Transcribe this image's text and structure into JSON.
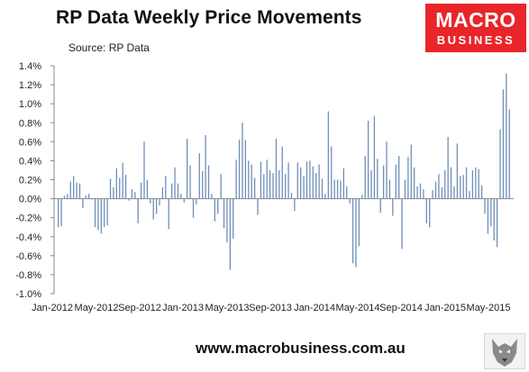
{
  "header": {
    "title": "RP Data Weekly Price Movements",
    "source": "Source: RP Data"
  },
  "logo": {
    "line1": "MACRO",
    "line2": "BUSINESS"
  },
  "footer": {
    "url": "www.macrobusiness.com.au"
  },
  "colors": {
    "bar": "#6f8fb8",
    "brand": "#e8262a"
  },
  "chart_data": {
    "type": "bar",
    "title": "RP Data Weekly Price Movements",
    "xlabel": "",
    "ylabel": "",
    "ylim": [
      -1.0,
      1.4
    ],
    "y_ticks": [
      "1.4%",
      "1.2%",
      "1.0%",
      "0.8%",
      "0.6%",
      "0.4%",
      "0.2%",
      "0.0%",
      "-0.2%",
      "-0.4%",
      "-0.6%",
      "-0.8%",
      "-1.0%"
    ],
    "x_ticks": [
      "Jan-2012",
      "May-2012",
      "Sep-2012",
      "Jan-2013",
      "May-2013",
      "Sep-2013",
      "Jan-2014",
      "May-2014",
      "Sep-2014",
      "Jan-2015",
      "May-2015"
    ],
    "grid": false,
    "legend": "none",
    "series": [
      {
        "values": [
          -0.3,
          -0.29,
          0.03,
          0.05,
          0.18,
          0.24,
          0.17,
          0.16,
          -0.1,
          0.03,
          0.05,
          -0.01,
          -0.3,
          -0.33,
          -0.37,
          -0.3,
          -0.28,
          0.21,
          0.12,
          0.32,
          0.22,
          0.38,
          0.25,
          -0.02,
          0.1,
          0.07,
          -0.26,
          0.17,
          0.6,
          0.2,
          -0.05,
          -0.22,
          -0.16,
          -0.07,
          0.12,
          0.24,
          -0.32,
          0.16,
          0.33,
          0.16,
          0.05,
          -0.04,
          0.63,
          0.35,
          -0.2,
          -0.06,
          0.48,
          0.29,
          0.67,
          0.35,
          0.05,
          -0.24,
          -0.16,
          0.26,
          -0.31,
          -0.46,
          -0.75,
          -0.42,
          0.41,
          0.62,
          0.8,
          0.62,
          0.4,
          0.36,
          0.22,
          -0.17,
          0.39,
          0.26,
          0.41,
          0.3,
          0.27,
          0.63,
          0.3,
          0.55,
          0.26,
          0.38,
          0.06,
          -0.13,
          0.38,
          0.33,
          0.24,
          0.39,
          0.4,
          0.34,
          0.27,
          0.36,
          0.21,
          0.05,
          0.92,
          0.55,
          0.2,
          0.2,
          0.19,
          0.32,
          0.13,
          -0.05,
          -0.68,
          -0.72,
          -0.5,
          0.04,
          0.45,
          0.82,
          0.3,
          0.87,
          0.42,
          -0.15,
          0.35,
          0.6,
          0.2,
          -0.18,
          0.36,
          0.45,
          -0.53,
          0.2,
          0.44,
          0.57,
          0.33,
          0.13,
          0.16,
          0.1,
          -0.26,
          -0.3,
          0.09,
          0.18,
          0.26,
          0.12,
          0.3,
          0.65,
          0.33,
          0.13,
          0.58,
          0.24,
          0.25,
          0.33,
          0.08,
          0.3,
          0.33,
          0.31,
          0.14,
          -0.16,
          -0.37,
          -0.29,
          -0.44,
          -0.51,
          0.73,
          1.15,
          1.32,
          0.94
        ]
      }
    ]
  }
}
